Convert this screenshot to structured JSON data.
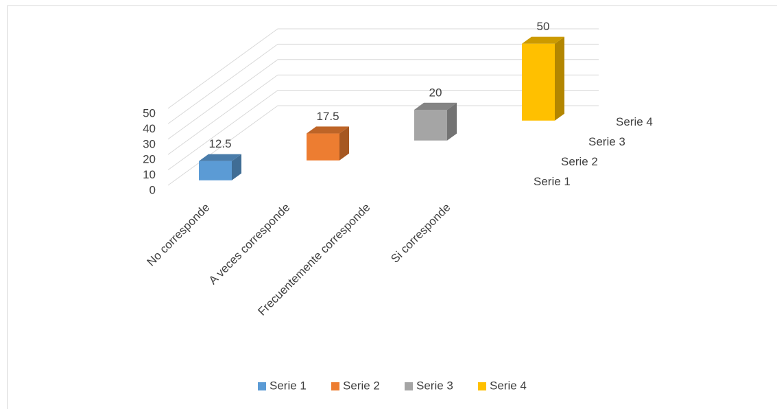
{
  "chart_data": {
    "type": "bar3d",
    "categories": [
      "No corresponde",
      "A veces corresponde",
      "Frecuentemente corresponde",
      "Si corresponde"
    ],
    "series": [
      {
        "name": "Serie 1",
        "color": "#5b9bd5",
        "values": [
          12.5,
          null,
          null,
          null
        ]
      },
      {
        "name": "Serie 2",
        "color": "#ed7d31",
        "values": [
          null,
          17.5,
          null,
          null
        ]
      },
      {
        "name": "Serie 3",
        "color": "#a5a5a5",
        "values": [
          null,
          null,
          20,
          null
        ]
      },
      {
        "name": "Serie 4",
        "color": "#ffc000",
        "values": [
          null,
          null,
          null,
          50
        ]
      }
    ],
    "ylim": [
      0,
      50
    ],
    "yticks": [
      0,
      10,
      20,
      30,
      40,
      50
    ],
    "grid": true,
    "legend": "bottom"
  }
}
